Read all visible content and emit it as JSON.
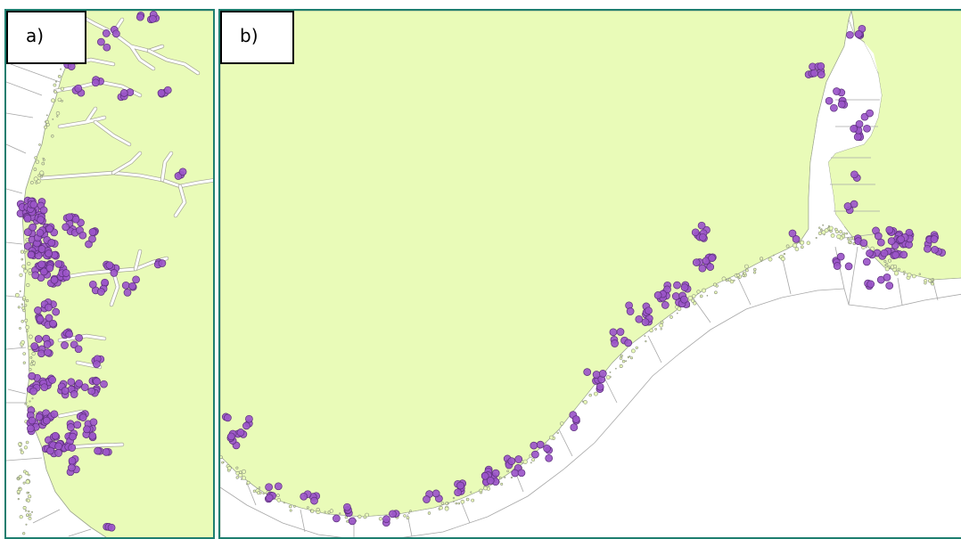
{
  "figure": {
    "panel_a": {
      "label": "a)",
      "point_color": "#9b55c9",
      "point_stroke": "#5b2f7a"
    },
    "panel_b": {
      "label": "b)",
      "point_color": "#9b55c9",
      "point_stroke": "#5b2f7a"
    },
    "colors": {
      "land": "#e9fbb8",
      "sea": "#ffffff",
      "frame": "#1e7e6f",
      "label_border": "#000000"
    }
  }
}
